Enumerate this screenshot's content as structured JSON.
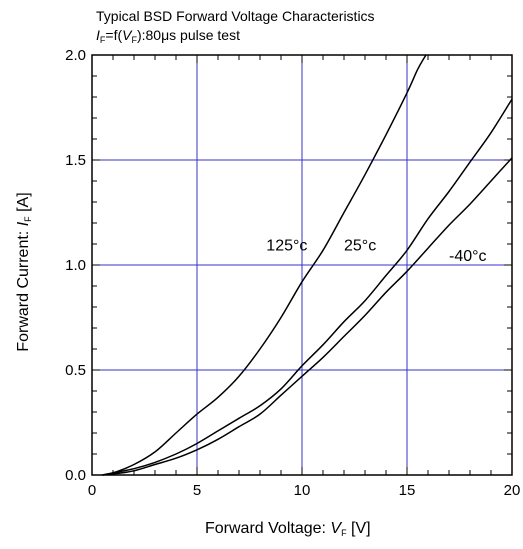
{
  "chart_data": {
    "type": "line",
    "title_line1": "Typical BSD Forward Voltage Characteristics",
    "title_line2_prefix": "I",
    "title_line2_sub1": "F",
    "title_line2_mid": "=f(",
    "title_line2_var": "V",
    "title_line2_sub2": "F",
    "title_line2_suffix": "):80μs pulse test",
    "xlabel_prefix": "Forward Voltage: ",
    "xlabel_var": "V",
    "xlabel_sub": "F",
    "xlabel_suffix": " [V]",
    "ylabel_prefix": "Forward Current: ",
    "ylabel_var": "I",
    "ylabel_sub": "F",
    "ylabel_suffix": " [A]",
    "xlim": [
      0,
      20
    ],
    "ylim": [
      0,
      2.0
    ],
    "xticks": [
      0,
      5,
      10,
      15,
      20
    ],
    "xtick_labels": [
      "0",
      "5",
      "10",
      "15",
      "20"
    ],
    "yticks": [
      0,
      0.5,
      1.0,
      1.5,
      2.0
    ],
    "ytick_labels": [
      "0.0",
      "0.5",
      "1.0",
      "1.5",
      "2.0"
    ],
    "grid": true,
    "grid_color": "#3333cc",
    "series": [
      {
        "name": "125°c",
        "x": [
          0.5,
          1,
          2,
          3,
          4,
          5,
          6,
          7,
          8,
          9,
          10,
          11,
          12,
          13,
          14,
          15,
          15.5,
          15.9
        ],
        "values": [
          0.0,
          0.01,
          0.05,
          0.11,
          0.2,
          0.29,
          0.37,
          0.47,
          0.6,
          0.75,
          0.92,
          1.07,
          1.25,
          1.43,
          1.62,
          1.82,
          1.93,
          2.0
        ]
      },
      {
        "name": "25°c",
        "x": [
          0.5,
          1,
          2,
          3,
          4,
          5,
          6,
          7,
          8,
          9,
          10,
          11,
          12,
          13,
          14,
          15,
          16,
          17,
          18,
          19,
          20
        ],
        "values": [
          0.0,
          0.01,
          0.03,
          0.06,
          0.1,
          0.15,
          0.21,
          0.27,
          0.33,
          0.41,
          0.52,
          0.62,
          0.73,
          0.83,
          0.95,
          1.07,
          1.22,
          1.35,
          1.49,
          1.63,
          1.79
        ]
      },
      {
        "name": "-40°c",
        "x": [
          0.5,
          1,
          2,
          3,
          4,
          5,
          6,
          7,
          8,
          9,
          10,
          11,
          12,
          13,
          14,
          15,
          16,
          17,
          18,
          19,
          20
        ],
        "values": [
          0.0,
          0.005,
          0.02,
          0.05,
          0.08,
          0.12,
          0.17,
          0.23,
          0.29,
          0.38,
          0.47,
          0.56,
          0.66,
          0.76,
          0.87,
          0.97,
          1.08,
          1.19,
          1.29,
          1.4,
          1.51
        ]
      }
    ]
  }
}
